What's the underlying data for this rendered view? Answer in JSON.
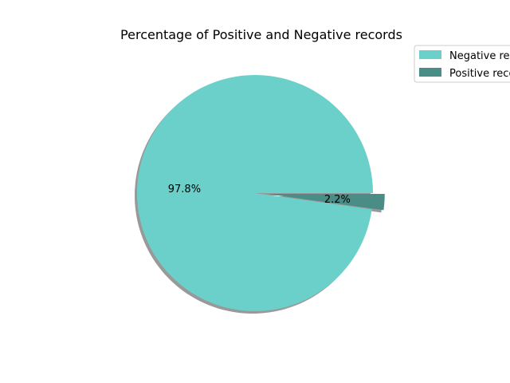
{
  "chart_data": {
    "type": "pie",
    "title": "Percentage of Positive and Negative records",
    "slices": [
      {
        "label": "Negative records",
        "value": 97.8,
        "pct_label": "97.8%",
        "color": "#6cd0ca",
        "exploded": false
      },
      {
        "label": "Positive records",
        "value": 2.2,
        "pct_label": "2.2%",
        "color": "#4a8c86",
        "exploded": true
      }
    ],
    "shadow": true,
    "legend": {
      "placement": "upper-right, outside",
      "entries": [
        "Negative records",
        "Positive records"
      ]
    }
  }
}
